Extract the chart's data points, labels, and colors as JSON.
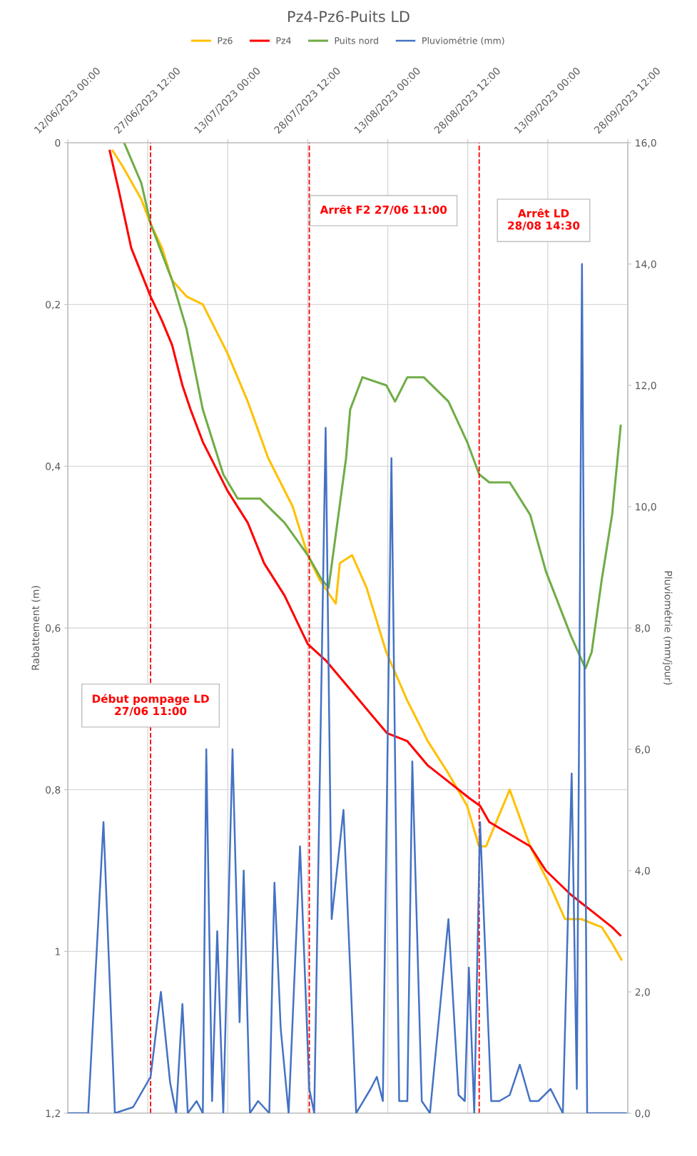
{
  "chart_data": {
    "type": "line",
    "title": "Pz4-Pz6-Puits LD",
    "xlabel": null,
    "ylabel": "Rabattement (m)",
    "y2label": "Pluviométrie (mm/jour)",
    "xlim": [
      "2023-06-12T00:00",
      "2023-09-28T12:00"
    ],
    "xticks": [
      {
        "value": "2023-06-12T00:00",
        "label": "12/06/2023 00:00"
      },
      {
        "value": "2023-06-27T12:00",
        "label": "27/06/2023 12:00"
      },
      {
        "value": "2023-07-13T00:00",
        "label": "13/07/2023 00:00"
      },
      {
        "value": "2023-07-28T12:00",
        "label": "28/07/2023 12:00"
      },
      {
        "value": "2023-08-13T00:00",
        "label": "13/08/2023 00:00"
      },
      {
        "value": "2023-08-28T12:00",
        "label": "28/08/2023 12:00"
      },
      {
        "value": "2023-09-13T00:00",
        "label": "13/09/2023 00:00"
      },
      {
        "value": "2023-09-28T12:00",
        "label": "28/09/2023 12:00"
      }
    ],
    "ylim": [
      1.2,
      0
    ],
    "yticks": [
      0,
      {
        "value": 0.2,
        "label": "0,2"
      },
      {
        "value": 0.4,
        "label": "0,4"
      },
      {
        "value": 0.6,
        "label": "0,6"
      },
      {
        "value": 0.8,
        "label": "0,8"
      },
      1,
      {
        "value": 1.2,
        "label": "1,2"
      }
    ],
    "y2lim": [
      0,
      16
    ],
    "y2ticks": [
      {
        "value": 0,
        "label": "0,0"
      },
      {
        "value": 2,
        "label": "2,0"
      },
      {
        "value": 4,
        "label": "4,0"
      },
      {
        "value": 6,
        "label": "6,0"
      },
      {
        "value": 8,
        "label": "8,0"
      },
      {
        "value": 10,
        "label": "10,0"
      },
      {
        "value": 12,
        "label": "12,0"
      },
      {
        "value": 14,
        "label": "14,0"
      },
      {
        "value": 16,
        "label": "16,0"
      }
    ],
    "grid": true,
    "legend": "top",
    "marker": "none",
    "line_style": "solid",
    "ref_lines": [
      {
        "axis": "x",
        "value": "2023-06-28T01:00",
        "label": "Début pompage LD\n27/06 11:00",
        "color": "#ff0000",
        "line_style": "dashed"
      },
      {
        "axis": "x",
        "value": "2023-07-28T19:00",
        "label": "Arrêt F2 27/06 11:00",
        "color": "#ff0000",
        "line_style": "dashed"
      },
      {
        "axis": "x",
        "value": "2023-08-30T17:00",
        "label": "Arrêt LD\n28/08 14:30",
        "color": "#ff0000",
        "line_style": "dashed"
      }
    ],
    "series": [
      {
        "name": "Pz6",
        "color": "#ffc000",
        "x": [
          "2023-06-20T17:00",
          "2023-06-22T17:00",
          "2023-06-26T06:00",
          "2023-06-28T01:00",
          "2023-06-30T06:00",
          "2023-07-02T05:00",
          "2023-07-05T00:00",
          "2023-07-08T04:00",
          "2023-07-12T22:00",
          "2023-07-16T21:00",
          "2023-07-20T20:00",
          "2023-07-25T14:00",
          "2023-07-28T12:00",
          "2023-07-30T18:00",
          "2023-08-02T22:00",
          "2023-08-03T17:00",
          "2023-08-06T02:00",
          "2023-08-08T21:00",
          "2023-08-12T17:00",
          "2023-08-16T19:00",
          "2023-08-20T18:00",
          "2023-08-24T18:00",
          "2023-08-28T09:00",
          "2023-08-30T16:00",
          "2023-09-01T01:00",
          "2023-09-05T15:00",
          "2023-09-09T14:00",
          "2023-09-13T13:00",
          "2023-09-16T08:00",
          "2023-09-19T12:00",
          "2023-09-23T11:00",
          "2023-09-25T11:00",
          "2023-09-27T06:00"
        ],
        "values": [
          0.01,
          0.03,
          0.07,
          0.1,
          0.13,
          0.17,
          0.19,
          0.2,
          0.26,
          0.32,
          0.39,
          0.45,
          0.51,
          0.54,
          0.57,
          0.52,
          0.51,
          0.55,
          0.63,
          0.69,
          0.74,
          0.78,
          0.82,
          0.87,
          0.87,
          0.8,
          0.87,
          0.92,
          0.96,
          0.96,
          0.97,
          0.99,
          1.01
        ]
      },
      {
        "name": "Pz4",
        "color": "#ff0000",
        "x": [
          "2023-06-20T03:00",
          "2023-06-21T22:00",
          "2023-06-24T07:00",
          "2023-06-28T01:00",
          "2023-06-30T06:00",
          "2023-07-02T05:00",
          "2023-07-04T05:00",
          "2023-07-05T19:00",
          "2023-07-08T04:00",
          "2023-07-12T22:00",
          "2023-07-16T21:00",
          "2023-07-20T01:00",
          "2023-07-24T00:00",
          "2023-07-28T12:00",
          "2023-07-31T23:00",
          "2023-08-04T22:00",
          "2023-08-12T20:00",
          "2023-08-16T19:00",
          "2023-08-20T18:00",
          "2023-08-24T18:00",
          "2023-08-28T17:00",
          "2023-08-30T21:00",
          "2023-09-01T16:00",
          "2023-09-09T14:00",
          "2023-09-12T15:00",
          "2023-09-17T12:00",
          "2023-09-21T12:00",
          "2023-09-25T11:00",
          "2023-09-27T01:00"
        ],
        "values": [
          0.01,
          0.06,
          0.13,
          0.19,
          0.22,
          0.25,
          0.3,
          0.33,
          0.37,
          0.43,
          0.47,
          0.52,
          0.56,
          0.62,
          0.64,
          0.67,
          0.73,
          0.74,
          0.77,
          0.79,
          0.81,
          0.82,
          0.84,
          0.87,
          0.9,
          0.93,
          0.95,
          0.97,
          0.98
        ]
      },
      {
        "name": "Puits nord",
        "color": "#70ad47",
        "x": [
          "2023-06-22T22:00",
          "2023-06-26T06:00",
          "2023-06-28T01:00",
          "2023-07-02T05:00",
          "2023-07-05T00:00",
          "2023-07-08T04:00",
          "2023-07-12T03:00",
          "2023-07-14T22:00",
          "2023-07-19T06:00",
          "2023-07-24T00:00",
          "2023-07-28T12:00",
          "2023-07-31T04:00",
          "2023-08-01T13:00",
          "2023-08-04T22:00",
          "2023-08-05T17:00",
          "2023-08-08T02:00",
          "2023-08-12T17:00",
          "2023-08-14T10:00",
          "2023-08-16T19:00",
          "2023-08-19T23:00",
          "2023-08-24T18:00",
          "2023-08-28T09:00",
          "2023-08-30T17:00",
          "2023-09-01T16:00",
          "2023-09-05T15:00",
          "2023-09-09T14:00",
          "2023-09-12T15:00",
          "2023-09-17T12:00",
          "2023-09-20T07:00",
          "2023-09-21T12:00",
          "2023-09-23T11:00",
          "2023-09-25T11:00",
          "2023-09-27T03:00"
        ],
        "values": [
          0.0,
          0.05,
          0.1,
          0.17,
          0.23,
          0.33,
          0.41,
          0.44,
          0.44,
          0.47,
          0.51,
          0.54,
          0.55,
          0.39,
          0.33,
          0.29,
          0.3,
          0.32,
          0.29,
          0.29,
          0.32,
          0.37,
          0.41,
          0.42,
          0.42,
          0.46,
          0.53,
          0.61,
          0.65,
          0.63,
          0.54,
          0.46,
          0.35
        ]
      },
      {
        "name": "Pluviométrie (mm)",
        "color": "#4472c4",
        "axis": "y2",
        "x": [
          "2023-06-12T00:00",
          "2023-06-15T23:00",
          "2023-06-18T22:00",
          "2023-06-21T03:00",
          "2023-06-24T16:00",
          "2023-06-28T01:00",
          "2023-06-30T01:00",
          "2023-07-01T20:00",
          "2023-07-03T00:00",
          "2023-07-04T05:00",
          "2023-07-05T06:00",
          "2023-07-06T23:00",
          "2023-07-08T04:00",
          "2023-07-08T20:00",
          "2023-07-09T23:00",
          "2023-07-10T23:00",
          "2023-07-12T03:00",
          "2023-07-13T22:00",
          "2023-07-15T07:00",
          "2023-07-16T02:00",
          "2023-07-17T07:00",
          "2023-07-18T21:00",
          "2023-07-21T01:00",
          "2023-07-22T01:00",
          "2023-07-23T06:00",
          "2023-07-24T19:00",
          "2023-07-27T00:00",
          "2023-07-28T19:00",
          "2023-07-29T18:00",
          "2023-07-31T23:00",
          "2023-08-02T03:00",
          "2023-08-04T10:00",
          "2023-08-06T21:00",
          "2023-08-09T16:00",
          "2023-08-10T21:00",
          "2023-08-12T01:00",
          "2023-08-13T17:00",
          "2023-08-15T05:00",
          "2023-08-16T19:00",
          "2023-08-17T18:00",
          "2023-08-19T14:00",
          "2023-08-21T04:00",
          "2023-08-24T18:00",
          "2023-08-26T17:00",
          "2023-08-27T22:00",
          "2023-08-28T17:00",
          "2023-08-29T18:00",
          "2023-08-30T21:00",
          "2023-09-02T01:00",
          "2023-09-03T15:00",
          "2023-09-05T15:00",
          "2023-09-07T14:00",
          "2023-09-09T14:00",
          "2023-09-11T04:00",
          "2023-09-13T13:00",
          "2023-09-15T22:00",
          "2023-09-17T15:00",
          "2023-09-18T15:00",
          "2023-09-19T15:00",
          "2023-09-20T15:00",
          "2023-09-28T03:00"
        ],
        "values": [
          0,
          0,
          4.8,
          0,
          0.1,
          0.6,
          2.0,
          0.5,
          0,
          1.8,
          0,
          0.2,
          0,
          6.0,
          0.2,
          3.0,
          0,
          6.0,
          1.5,
          4.0,
          0,
          0.2,
          0,
          3.8,
          1.4,
          0,
          4.4,
          0.4,
          0,
          11.3,
          3.2,
          5.0,
          0,
          0.4,
          0.6,
          0.2,
          10.8,
          0.2,
          0.2,
          5.8,
          0.2,
          0,
          3.2,
          0.3,
          0.2,
          2.4,
          0,
          4.8,
          0.2,
          0.2,
          0.3,
          0.8,
          0.2,
          0.2,
          0.4,
          0,
          5.6,
          0.4,
          14.0,
          0,
          0
        ]
      }
    ]
  }
}
